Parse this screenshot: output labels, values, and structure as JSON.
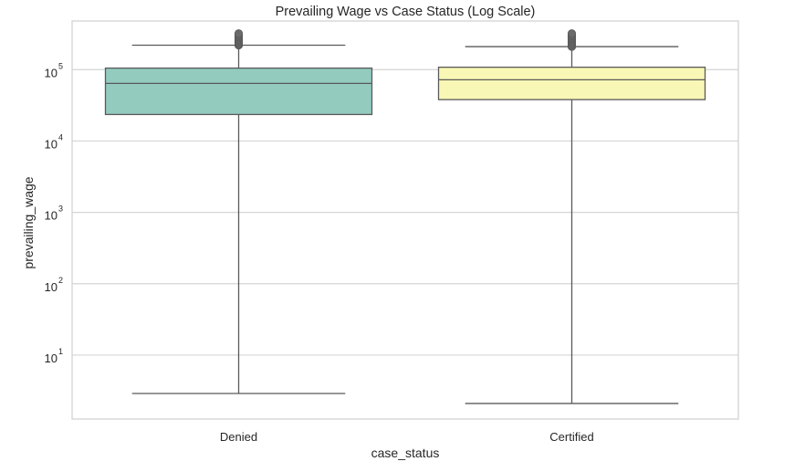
{
  "chart_data": {
    "type": "box",
    "title": "Prevailing Wage vs Case Status (Log Scale)",
    "xlabel": "case_status",
    "ylabel": "prevailing_wage",
    "y_scale": "log",
    "y_ticks": [
      {
        "base": "10",
        "exp": "1",
        "value": 10
      },
      {
        "base": "10",
        "exp": "2",
        "value": 100
      },
      {
        "base": "10",
        "exp": "3",
        "value": 1000
      },
      {
        "base": "10",
        "exp": "4",
        "value": 10000
      },
      {
        "base": "10",
        "exp": "5",
        "value": 100000
      }
    ],
    "ylim": [
      1.27,
      480000
    ],
    "grid": true,
    "categories": [
      "Denied",
      "Certified"
    ],
    "boxes": [
      {
        "category": "Denied",
        "color": "#93cbbf",
        "whisker_low": 2.9,
        "q1": 23500,
        "median": 64000,
        "q3": 105000,
        "whisker_high": 220000,
        "outlier_range": [
          220000,
          320000
        ]
      },
      {
        "category": "Certified",
        "color": "#f8f7b5",
        "whisker_low": 2.1,
        "q1": 38000,
        "median": 72000,
        "q3": 108000,
        "whisker_high": 210000,
        "outlier_range": [
          210000,
          320000
        ]
      }
    ]
  }
}
